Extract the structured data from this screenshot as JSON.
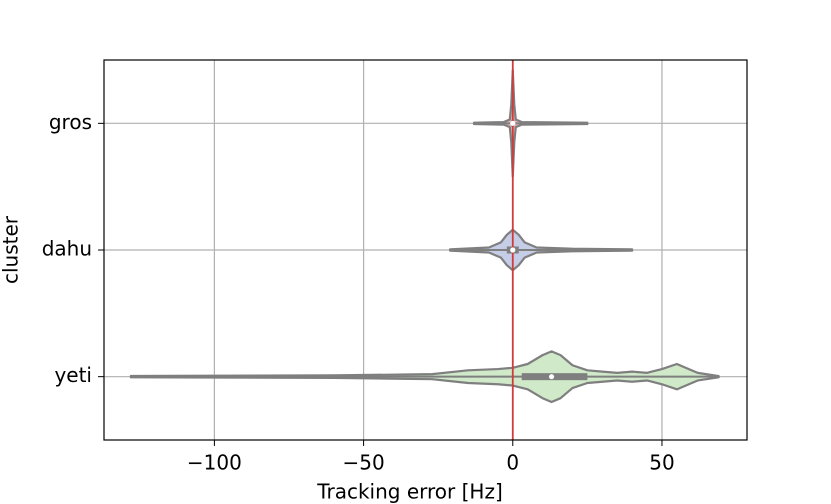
{
  "chart_data": {
    "type": "violin",
    "orientation": "horizontal",
    "x_label": "Tracking error [Hz]",
    "y_label": "cluster",
    "categories": [
      "gros",
      "dahu",
      "yeti"
    ],
    "xlim": [
      -137,
      78.5
    ],
    "xticks": [
      {
        "value": -100,
        "label": "−100"
      },
      {
        "value": -50,
        "label": "−50"
      },
      0,
      50
    ],
    "grid": true,
    "edge_color": "#7f7f7f",
    "vline": {
      "value": 0,
      "color": "#d03b3b"
    },
    "violins": [
      {
        "color": "#e6b3b3",
        "min": -13,
        "q1": -0.5,
        "median": 0,
        "q3": 0.5,
        "max": 25,
        "density_x": [
          -13,
          -3,
          -1,
          -0.5,
          0,
          0.5,
          1,
          3,
          25
        ],
        "density_width": [
          0.005,
          0.01,
          0.03,
          0.15,
          0.42,
          0.15,
          0.03,
          0.01,
          0.005
        ]
      },
      {
        "color": "#c6cde6",
        "min": -21,
        "q1": -2,
        "median": 0,
        "q3": 2,
        "max": 40,
        "density_x": [
          -21,
          -8,
          -4,
          -2,
          0,
          2,
          4,
          8,
          20,
          40
        ],
        "density_width": [
          0.005,
          0.02,
          0.06,
          0.12,
          0.16,
          0.12,
          0.06,
          0.02,
          0.01,
          0.005
        ]
      },
      {
        "color": "#cfe9c9",
        "min": -128,
        "q1": 3,
        "median": 13,
        "q3": 25,
        "max": 69,
        "density_x": [
          -128,
          -60,
          -27,
          -15,
          -5,
          0,
          5,
          10,
          13,
          16,
          20,
          25,
          30,
          35,
          40,
          45,
          50,
          55,
          60,
          62,
          69
        ],
        "density_width": [
          0.005,
          0.01,
          0.02,
          0.05,
          0.06,
          0.07,
          0.1,
          0.17,
          0.2,
          0.17,
          0.09,
          0.05,
          0.04,
          0.03,
          0.04,
          0.03,
          0.06,
          0.1,
          0.05,
          0.03,
          0.005
        ]
      }
    ]
  }
}
